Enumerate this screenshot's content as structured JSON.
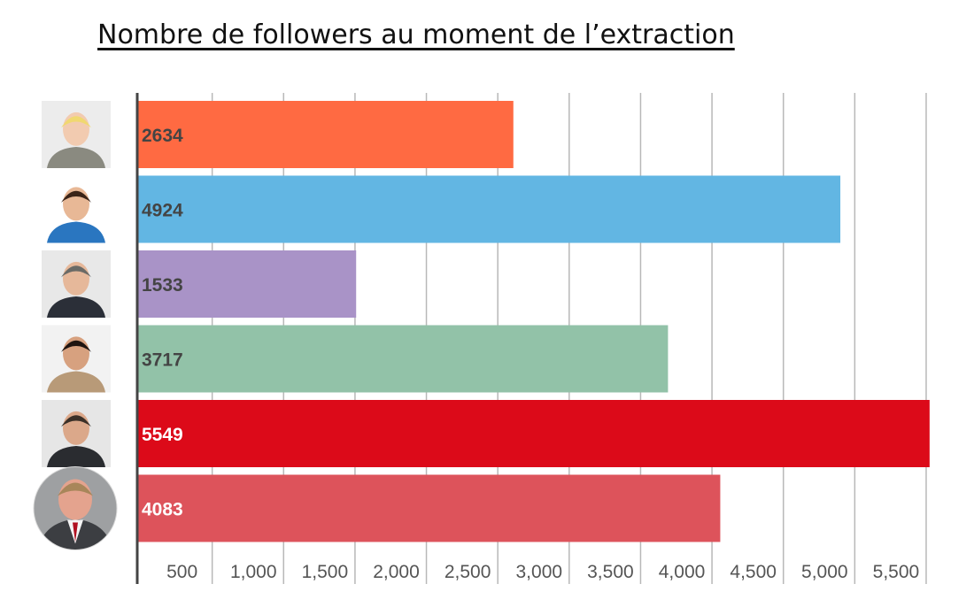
{
  "title": "Nombre de followers au moment de l’extraction",
  "chart_data": {
    "type": "bar",
    "orientation": "horizontal",
    "title": "Nombre de followers au moment de l’extraction",
    "xlabel": "",
    "ylabel": "",
    "categories": [
      "",
      "",
      "",
      "",
      "",
      ""
    ],
    "values": [
      2634,
      4924,
      1533,
      3717,
      5549,
      4083
    ],
    "value_labels": [
      "2634",
      "4924",
      "1533",
      "3717",
      "5549",
      "4083"
    ],
    "colors": [
      "#FF6A42",
      "#62B6E3",
      "#A993C7",
      "#92C2A8",
      "#DC0A19",
      "#DD535B"
    ],
    "label_colors": [
      "#444444",
      "#444444",
      "#444444",
      "#444444",
      "#FFFFFF",
      "#FFFFFF"
    ],
    "category_images": [
      "portrait-photo",
      "portrait-photo",
      "portrait-photo",
      "portrait-photo",
      "portrait-photo",
      "portrait-photo"
    ],
    "x_ticks": [
      500,
      1000,
      1500,
      2000,
      2500,
      3000,
      3500,
      4000,
      4500,
      5000,
      5500
    ],
    "x_tick_labels": [
      "500",
      "1,000",
      "1,500",
      "2,000",
      "2,500",
      "3,000",
      "3,500",
      "4,000",
      "4,500",
      "5,000",
      "5,500"
    ],
    "xlim": [
      0,
      5550
    ],
    "grid": true,
    "legend": "none"
  }
}
